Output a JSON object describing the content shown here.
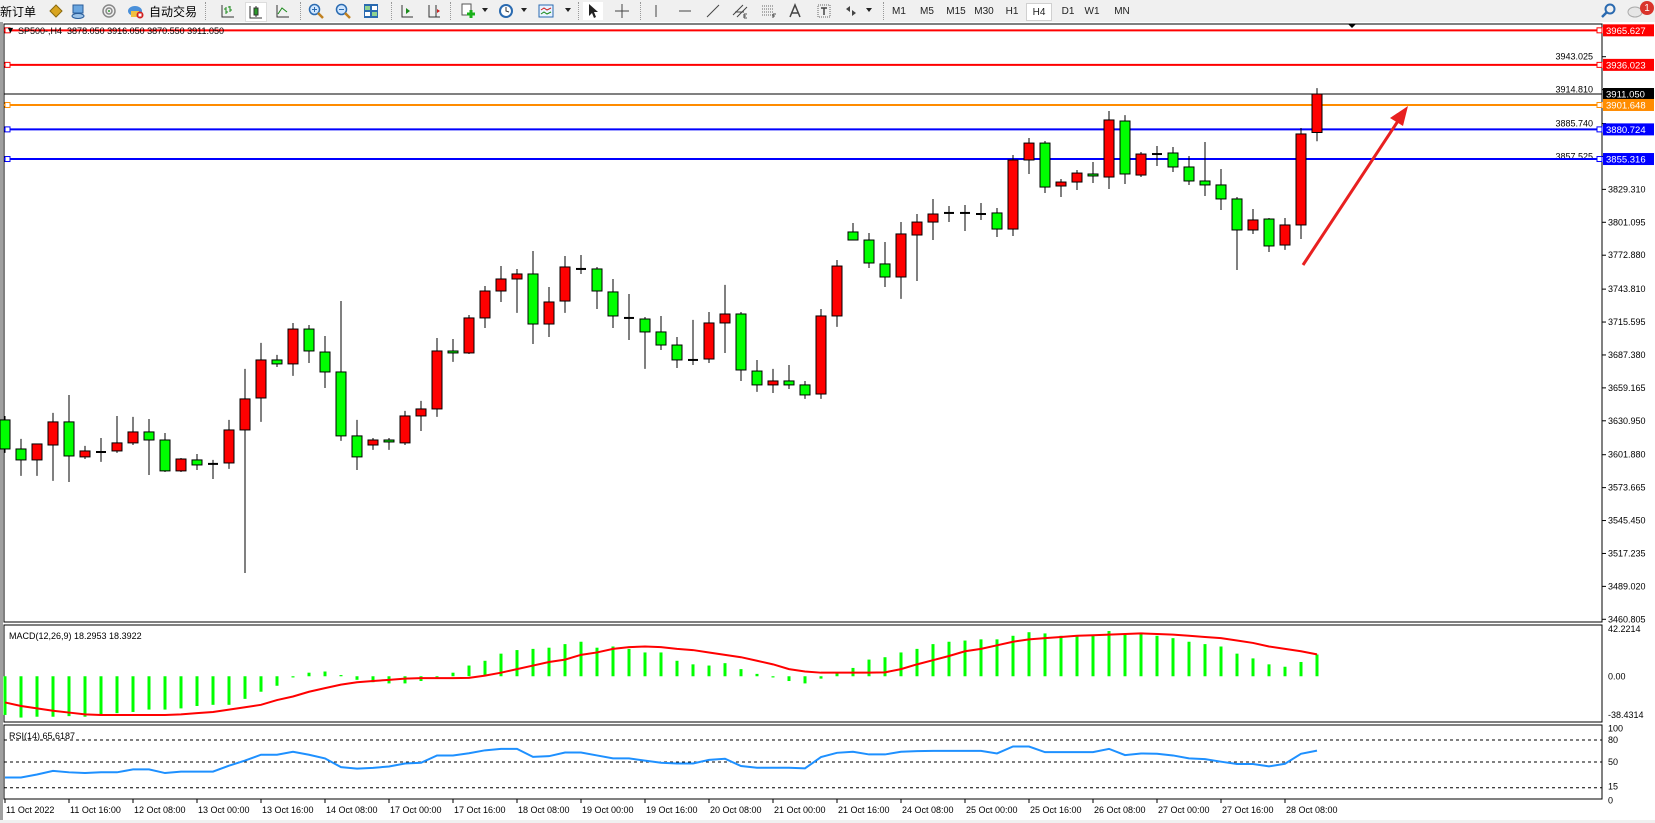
{
  "toolbar": {
    "new_order": "新订单",
    "auto_trading": "自动交易",
    "timeframes": [
      "M1",
      "M5",
      "M15",
      "M30",
      "H1",
      "H4",
      "D1",
      "W1",
      "MN"
    ],
    "active_timeframe": "H4",
    "notification_count": "1"
  },
  "chart": {
    "symbol": "SP500-,H4",
    "ohlc_readout": "3878.050 3916.050 3870.550 3911.050",
    "colors": {
      "up": "#ff0000",
      "down": "#00ff00",
      "macd_hist": "#00ff00",
      "macd_signal": "#ff0000",
      "rsi": "#1e90ff",
      "arrow": "#e82020"
    },
    "levels": [
      {
        "price": "3965.627",
        "color": "#ff0000"
      },
      {
        "price": "3936.023",
        "color": "#ff0000"
      },
      {
        "price": "3911.050",
        "color": "#000000",
        "kind": "bid"
      },
      {
        "price": "3901.648",
        "color": "#ff8c00"
      },
      {
        "price": "3880.724",
        "color": "#0000ff"
      },
      {
        "price": "3855.316",
        "color": "#0000ff"
      }
    ],
    "price_ticks": [
      "3943.025",
      "3914.810",
      "3885.740",
      "3857.525",
      "3829.310",
      "3801.095",
      "3772.880",
      "3743.810",
      "3715.595",
      "3687.380",
      "3659.165",
      "3630.950",
      "3601.880",
      "3573.665",
      "3545.450",
      "3517.235",
      "3489.020",
      "3460.805"
    ],
    "time_labels": [
      "11 Oct 2022",
      "11 Oct 16:00",
      "12 Oct 08:00",
      "13 Oct 00:00",
      "13 Oct 16:00",
      "14 Oct 08:00",
      "17 Oct 00:00",
      "17 Oct 16:00",
      "18 Oct 08:00",
      "19 Oct 00:00",
      "19 Oct 16:00",
      "20 Oct 08:00",
      "21 Oct 00:00",
      "21 Oct 16:00",
      "24 Oct 08:00",
      "25 Oct 00:00",
      "25 Oct 16:00",
      "26 Oct 08:00",
      "27 Oct 00:00",
      "27 Oct 16:00",
      "28 Oct 08:00"
    ],
    "macd_label": "MACD(12,26,9) 18.2953 18.3922",
    "macd_ticks": [
      "42.2214",
      "0.00",
      "-38.4314"
    ],
    "rsi_label": "RSI(14) 65.6187",
    "rsi_ticks": [
      "100",
      "80",
      "50",
      "15",
      "0"
    ]
  },
  "chart_data": [
    {
      "type": "candlestick",
      "symbol": "SP500-",
      "timeframe": "H4",
      "ylim": [
        3460.805,
        3965.627
      ],
      "ohlc": [
        [
          3631.7,
          3635.1,
          3603.4,
          3606.8
        ],
        [
          3606.8,
          3615.4,
          3583.7,
          3597.4
        ],
        [
          3597.4,
          3611.1,
          3583.7,
          3611.1
        ],
        [
          3610.2,
          3637.7,
          3579.4,
          3630.0
        ],
        [
          3630.0,
          3653.1,
          3578.5,
          3600.8
        ],
        [
          3600.0,
          3609.4,
          3598.2,
          3605.1
        ],
        [
          3604.2,
          3616.2,
          3595.7,
          3604.2
        ],
        [
          3605.1,
          3635.1,
          3603.4,
          3612.0
        ],
        [
          3612.0,
          3634.3,
          3610.2,
          3621.4
        ],
        [
          3621.4,
          3632.5,
          3584.5,
          3614.5
        ],
        [
          3614.5,
          3620.5,
          3587.1,
          3588.0
        ],
        [
          3588.0,
          3599.1,
          3587.1,
          3598.2
        ],
        [
          3597.4,
          3602.5,
          3588.8,
          3593.1
        ],
        [
          3594.0,
          3597.4,
          3581.1,
          3594.0
        ],
        [
          3594.8,
          3631.7,
          3589.7,
          3623.1
        ],
        [
          3623.1,
          3675.4,
          3500.5,
          3649.7
        ],
        [
          3650.5,
          3697.7,
          3630.0,
          3683.1
        ],
        [
          3683.1,
          3687.4,
          3677.1,
          3679.7
        ],
        [
          3679.7,
          3714.8,
          3669.4,
          3709.6
        ],
        [
          3709.6,
          3713.1,
          3680.5,
          3690.8
        ],
        [
          3689.9,
          3703.6,
          3659.1,
          3672.8
        ],
        [
          3672.8,
          3733.6,
          3613.7,
          3618.0
        ],
        [
          3618.0,
          3631.7,
          3588.8,
          3600.0
        ],
        [
          3610.2,
          3616.2,
          3606.0,
          3614.5
        ],
        [
          3614.5,
          3616.2,
          3606.0,
          3612.8
        ],
        [
          3612.0,
          3639.4,
          3610.2,
          3635.1
        ],
        [
          3635.1,
          3648.0,
          3622.2,
          3641.1
        ],
        [
          3641.1,
          3701.9,
          3634.3,
          3690.8
        ],
        [
          3690.8,
          3701.1,
          3681.4,
          3689.1
        ],
        [
          3689.1,
          3721.6,
          3688.2,
          3719.1
        ],
        [
          3719.1,
          3746.5,
          3710.5,
          3742.2
        ],
        [
          3742.2,
          3763.6,
          3732.8,
          3752.5
        ],
        [
          3752.5,
          3761.1,
          3723.4,
          3756.8
        ],
        [
          3756.8,
          3776.5,
          3696.8,
          3713.9
        ],
        [
          3713.9,
          3745.6,
          3702.8,
          3732.8
        ],
        [
          3733.6,
          3772.2,
          3723.4,
          3762.8
        ],
        [
          3761.1,
          3773.1,
          3756.8,
          3761.1
        ],
        [
          3761.1,
          3762.8,
          3726.8,
          3742.2
        ],
        [
          3741.4,
          3752.5,
          3710.5,
          3720.8
        ],
        [
          3719.1,
          3739.6,
          3700.2,
          3719.1
        ],
        [
          3718.2,
          3719.9,
          3675.4,
          3707.1
        ],
        [
          3707.1,
          3720.8,
          3691.6,
          3695.9
        ],
        [
          3695.9,
          3702.8,
          3676.2,
          3683.1
        ],
        [
          3683.1,
          3717.4,
          3678.8,
          3683.1
        ],
        [
          3683.9,
          3724.2,
          3680.5,
          3714.8
        ],
        [
          3714.8,
          3747.4,
          3689.1,
          3722.5
        ],
        [
          3722.5,
          3724.2,
          3665.1,
          3674.5
        ],
        [
          3673.6,
          3683.1,
          3655.7,
          3661.7
        ],
        [
          3661.7,
          3675.4,
          3654.8,
          3665.1
        ],
        [
          3665.1,
          3678.8,
          3658.2,
          3661.7
        ],
        [
          3661.7,
          3665.1,
          3649.7,
          3653.1
        ],
        [
          3653.9,
          3726.8,
          3649.7,
          3720.8
        ],
        [
          3720.8,
          3768.8,
          3711.4,
          3763.6
        ],
        [
          3792.8,
          3800.5,
          3785.9,
          3785.9
        ],
        [
          3785.9,
          3791.9,
          3761.9,
          3766.2
        ],
        [
          3765.4,
          3784.2,
          3745.6,
          3754.2
        ],
        [
          3754.2,
          3801.3,
          3735.4,
          3791.1
        ],
        [
          3790.2,
          3808.2,
          3750.8,
          3801.3
        ],
        [
          3801.3,
          3821.1,
          3785.9,
          3808.2
        ],
        [
          3809.1,
          3815.1,
          3801.3,
          3809.1
        ],
        [
          3809.1,
          3815.9,
          3793.6,
          3809.1
        ],
        [
          3808.2,
          3817.6,
          3803.1,
          3808.2
        ],
        [
          3809.1,
          3813.3,
          3788.5,
          3795.3
        ],
        [
          3795.3,
          3858.8,
          3789.3,
          3854.5
        ],
        [
          3854.5,
          3873.3,
          3842.5,
          3869.0
        ],
        [
          3869.0,
          3870.8,
          3826.2,
          3831.3
        ],
        [
          3832.2,
          3838.2,
          3822.8,
          3835.6
        ],
        [
          3835.6,
          3845.9,
          3828.8,
          3843.3
        ],
        [
          3842.5,
          3852.8,
          3834.8,
          3840.8
        ],
        [
          3839.9,
          3896.5,
          3829.6,
          3888.8
        ],
        [
          3887.9,
          3893.0,
          3833.9,
          3842.5
        ],
        [
          3841.6,
          3861.3,
          3839.9,
          3859.6
        ],
        [
          3859.6,
          3866.5,
          3849.3,
          3859.6
        ],
        [
          3860.5,
          3865.6,
          3844.2,
          3848.5
        ],
        [
          3848.5,
          3857.9,
          3833.1,
          3836.5
        ],
        [
          3836.5,
          3869.9,
          3823.6,
          3833.1
        ],
        [
          3833.1,
          3846.8,
          3811.6,
          3821.1
        ],
        [
          3821.1,
          3822.8,
          3760.2,
          3794.5
        ],
        [
          3794.5,
          3812.5,
          3791.1,
          3803.1
        ],
        [
          3803.9,
          3804.8,
          3775.6,
          3780.8
        ],
        [
          3781.6,
          3804.8,
          3777.4,
          3798.8
        ],
        [
          3798.8,
          3881.9,
          3786.8,
          3876.8
        ],
        [
          3878.05,
          3916.05,
          3870.55,
          3911.05
        ]
      ]
    },
    {
      "type": "bar",
      "name": "MACD(12,26,9)",
      "ylim": [
        -38.4314,
        42.2214
      ],
      "histogram": [
        -32.5,
        -34.7,
        -34,
        -34,
        -33.5,
        -34,
        -32,
        -31,
        -30,
        -28,
        -28,
        -27,
        -25,
        -24,
        -24,
        -19,
        -13,
        -8,
        -1,
        3,
        4,
        1,
        -3,
        -5,
        -6,
        -6,
        -4,
        -1,
        3,
        9,
        13,
        19,
        22,
        23,
        24,
        27,
        29,
        24,
        25,
        23,
        20,
        20,
        13,
        10,
        9,
        11,
        6,
        2,
        -1,
        -4,
        -6,
        -2,
        3,
        7,
        14,
        16,
        20,
        23,
        27,
        29,
        30,
        31,
        31,
        34,
        37,
        36,
        34,
        34,
        35,
        38,
        36,
        36,
        34,
        32,
        29,
        27,
        25,
        19,
        15,
        10,
        8,
        12,
        18.3
      ],
      "signal": [
        -22,
        -25,
        -27,
        -29,
        -30.5,
        -32,
        -32.5,
        -32.5,
        -32.5,
        -32.5,
        -32.5,
        -32,
        -31,
        -30,
        -28,
        -26,
        -24,
        -20,
        -17,
        -13,
        -10,
        -7,
        -5,
        -4,
        -3,
        -2,
        -1.6,
        -1.6,
        -1.6,
        -1.4,
        0.5,
        3,
        6,
        9,
        12,
        14,
        18,
        20,
        23,
        24.5,
        25,
        24.5,
        23,
        22,
        20,
        18,
        16,
        13,
        10,
        6,
        4,
        3,
        3,
        3,
        3,
        3.3,
        6,
        10,
        13.5,
        17,
        21,
        23,
        26,
        29,
        31,
        32,
        33,
        34,
        34.4,
        35,
        35.5,
        36,
        35.5,
        35,
        34,
        33,
        32,
        30,
        28,
        25,
        23,
        21,
        18.4
      ]
    },
    {
      "type": "line",
      "name": "RSI(14)",
      "ylim": [
        0,
        100
      ],
      "levels": [
        80,
        50,
        15
      ],
      "values": [
        29,
        29,
        33,
        38,
        36,
        35,
        36,
        36,
        40,
        40,
        35,
        37,
        37,
        37,
        45,
        52,
        60,
        60,
        64,
        60,
        55,
        43,
        41,
        42,
        44,
        48,
        49,
        59,
        59,
        62,
        66,
        68,
        68,
        57,
        58,
        63,
        63,
        59,
        55,
        55,
        52,
        49,
        48,
        48,
        53,
        54.5,
        44.6,
        42.3,
        42.3,
        42.3,
        41.4,
        56.8,
        62.6,
        64,
        60.4,
        60.4,
        64,
        64.9,
        65.3,
        65.3,
        65.3,
        65.3,
        61.7,
        71.2,
        71.2,
        63.5,
        63.5,
        63.5,
        63.5,
        68,
        59.5,
        61.7,
        61.3,
        59,
        55,
        54,
        50.5,
        47.3,
        47.3,
        44.1,
        47.7,
        61.3,
        65.6187
      ]
    }
  ]
}
